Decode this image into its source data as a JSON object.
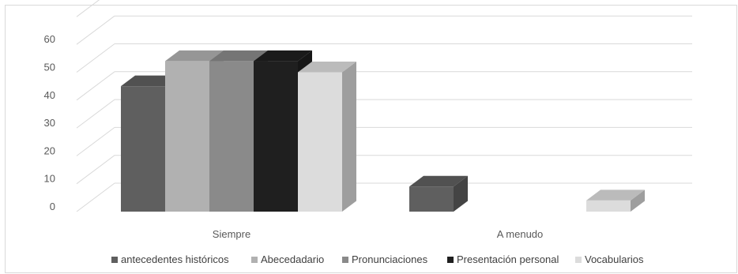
{
  "chart_data": {
    "type": "bar",
    "style": "3d-clustered-column",
    "categories": [
      "Siempre",
      "A menudo"
    ],
    "series": [
      {
        "name": "antecedentes históricos",
        "values": [
          45,
          9
        ],
        "color": "#5f5f5f"
      },
      {
        "name": "Abecedadario",
        "values": [
          54,
          0
        ],
        "color": "#b1b1b1"
      },
      {
        "name": "Pronunciaciones",
        "values": [
          54,
          0
        ],
        "color": "#8a8a8a"
      },
      {
        "name": "Presentación personal",
        "values": [
          54,
          0
        ],
        "color": "#1f1f1f"
      },
      {
        "name": "Vocabularios",
        "values": [
          50,
          4
        ],
        "color": "#dcdcdc"
      }
    ],
    "ylim": [
      0,
      60
    ],
    "yticks": [
      0,
      10,
      20,
      30,
      40,
      50,
      60
    ],
    "grid": true,
    "legend_position": "bottom",
    "title": "",
    "xlabel": "",
    "ylabel": ""
  }
}
